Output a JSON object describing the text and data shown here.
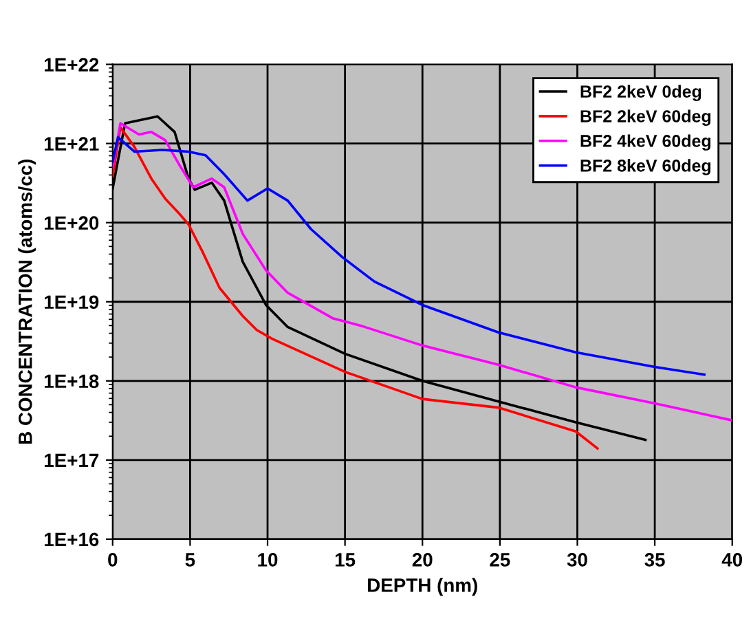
{
  "chart_data": {
    "type": "line",
    "xlabel": "DEPTH (nm)",
    "ylabel": "B CONCENTRATION (atoms/cc)",
    "log": "y",
    "grid": true,
    "legend": "top right",
    "marker": "none",
    "line_style": "solid",
    "xlim": [
      0,
      40
    ],
    "xticks": [
      0,
      5,
      10,
      15,
      20,
      25,
      30,
      35,
      40
    ],
    "ylim": [
      1e+16,
      1e+22
    ],
    "yticks": [
      {
        "value": 1e+16,
        "label": "1E+16"
      },
      {
        "value": 1e+17,
        "label": "1E+17"
      },
      {
        "value": 1e+18,
        "label": "1E+18"
      },
      {
        "value": 1e+19,
        "label": "1E+19"
      },
      {
        "value": 1e+20,
        "label": "1E+20"
      },
      {
        "value": 1e+21,
        "label": "1E+21"
      },
      {
        "value": 1e+22,
        "label": "1E+22"
      }
    ],
    "series": [
      {
        "name": "BF2 2keV 0deg",
        "color": "#000000",
        "x": [
          0,
          0.8,
          2.9,
          4.0,
          4.9,
          5.3,
          6.4,
          7.2,
          8.4,
          9.9,
          11.3,
          15,
          20,
          24.9,
          29.9,
          34.4
        ],
        "values": [
          2.7e+20,
          1.8e+21,
          2.2e+21,
          1.4e+21,
          3.6e+20,
          2.6e+20,
          3.2e+20,
          1.9e+20,
          3.2e+19,
          9.1e+18,
          4.8e+18,
          2.2e+18,
          1e+18,
          5.5e+17,
          3e+17,
          1.8e+17
        ]
      },
      {
        "name": "BF2 2keV 60deg",
        "color": "#ff0000",
        "x": [
          0,
          0.5,
          1.4,
          2.5,
          3.4,
          4.3,
          4.9,
          5.8,
          6.9,
          8.4,
          9.3,
          10.3,
          15,
          20,
          24.9,
          29.9,
          31.3
        ],
        "values": [
          3.9e+20,
          1.6e+21,
          9.1e+20,
          3.6e+20,
          2e+20,
          1.3e+20,
          9.5e+19,
          4.3e+19,
          1.5e+19,
          6.6e+18,
          4.4e+18,
          3.4e+18,
          1.3e+18,
          5.9e+17,
          4.6e+17,
          2.3e+17,
          1.4e+17
        ]
      },
      {
        "name": "BF2 4keV 60deg",
        "color": "#ff00ff",
        "x": [
          0,
          0.5,
          1.7,
          2.5,
          3.4,
          4.3,
          5.2,
          6.4,
          7.2,
          8.4,
          9.9,
          11.3,
          14.2,
          16,
          20,
          24.9,
          29.9,
          35,
          39.9
        ],
        "values": [
          5e+20,
          1.8e+21,
          1.3e+21,
          1.4e+21,
          1.1e+21,
          5.4e+20,
          2.8e+20,
          3.6e+20,
          2.8e+20,
          7.2e+19,
          2.5e+19,
          1.3e+19,
          6.2e+18,
          5e+18,
          2.8e+18,
          1.6e+18,
          8.3e+17,
          5.2e+17,
          3.2e+17
        ]
      },
      {
        "name": "BF2 8keV 60deg",
        "color": "#0000ff",
        "x": [
          0,
          0.35,
          1.4,
          3.2,
          4.9,
          6.0,
          7.2,
          8.7,
          10.0,
          11.3,
          12.8,
          14.8,
          16.9,
          20,
          24.9,
          29.9,
          35,
          38.2
        ],
        "values": [
          5.9e+20,
          1.2e+21,
          7.9e+20,
          8.3e+20,
          7.9e+20,
          7.1e+20,
          4.1e+20,
          1.9e+20,
          2.7e+20,
          1.9e+20,
          8.3e+19,
          3.7e+19,
          1.8e+19,
          9.1e+18,
          4.1e+18,
          2.3e+18,
          1.5e+18,
          1.2e+18
        ]
      }
    ]
  }
}
